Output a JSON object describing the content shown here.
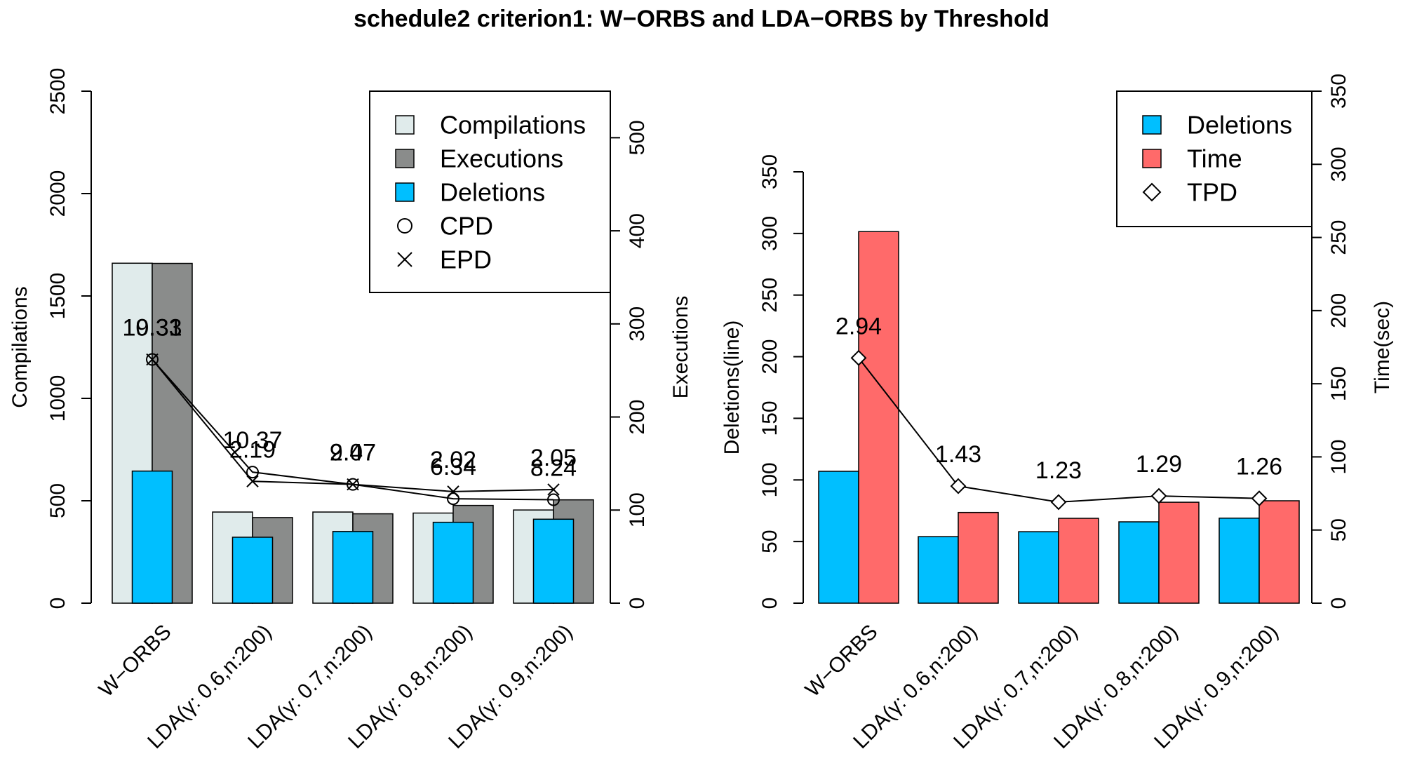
{
  "title": "schedule2 criterion1: W−ORBS and LDA−ORBS by Threshold",
  "chart_data": [
    {
      "type": "bar",
      "panel": "left",
      "categories": [
        "W−ORBS",
        "LDA(γ: 0.6,n:200)",
        "LDA(γ: 0.7,n:200)",
        "LDA(γ: 0.8,n:200)",
        "LDA(γ: 0.9,n:200)"
      ],
      "ylabel": "Compilations",
      "ylabel_right": "Executions",
      "ylim": [
        0,
        2500
      ],
      "ylim_right": [
        0,
        550
      ],
      "yticks": [
        "0",
        "500",
        "1000",
        "1500",
        "2000",
        "2500"
      ],
      "yticks_right": [
        "0",
        "100",
        "200",
        "300",
        "400",
        "500"
      ],
      "series": [
        {
          "name": "Compilations",
          "axis": "left",
          "color": "#e0ebeb",
          "values": [
            1660,
            445,
            445,
            440,
            455
          ]
        },
        {
          "name": "Executions",
          "axis": "right",
          "color": "#8a8c8b",
          "values": [
            365,
            92,
            96,
            105,
            111
          ]
        },
        {
          "name": "Deletions",
          "axis": "left",
          "color": "#00bfff",
          "values": [
            645,
            322,
            350,
            395,
            410
          ]
        }
      ],
      "lines": [
        {
          "name": "CPD",
          "marker": "circle",
          "values": [
            1190,
            640,
            580,
            510,
            505
          ],
          "labels": [
            "10.31",
            "10.37",
            "9.47",
            "6.34",
            "8.24"
          ]
        },
        {
          "name": "EPD",
          "marker": "x",
          "values": [
            1190,
            595,
            580,
            545,
            555
          ],
          "labels": [
            "19.33",
            "2.19",
            "2.07",
            "2.02",
            "2.05"
          ]
        }
      ],
      "legend": {
        "position": "top-right",
        "items": [
          "Compilations",
          "Executions",
          "Deletions",
          "CPD",
          "EPD"
        ]
      }
    },
    {
      "type": "bar",
      "panel": "right",
      "categories": [
        "W−ORBS",
        "LDA(γ: 0.6,n:200)",
        "LDA(γ: 0.7,n:200)",
        "LDA(γ: 0.8,n:200)",
        "LDA(γ: 0.9,n:200)"
      ],
      "ylabel": "Deletions(line)",
      "ylabel_right": "Time(sec)",
      "ylim": [
        0,
        350
      ],
      "ylim_right": [
        0,
        350
      ],
      "yticks": [
        "0",
        "50",
        "100",
        "150",
        "200",
        "250",
        "300",
        "350"
      ],
      "yticks_right": [
        "0",
        "50",
        "100",
        "150",
        "200",
        "250",
        "300",
        "350"
      ],
      "series": [
        {
          "name": "Deletions",
          "axis": "left",
          "color": "#00bfff",
          "values": [
            107,
            54,
            58,
            66,
            69
          ]
        },
        {
          "name": "Time",
          "axis": "right",
          "color": "#ff6a6a",
          "values": [
            254,
            62,
            58,
            69,
            70
          ]
        }
      ],
      "lines": [
        {
          "name": "TPD",
          "marker": "diamond",
          "values": [
            199,
            95,
            82,
            87,
            85
          ],
          "labels": [
            "2.94",
            "1.43",
            "1.23",
            "1.29",
            "1.26"
          ]
        }
      ],
      "legend": {
        "position": "top-right",
        "items": [
          "Deletions",
          "Time",
          "TPD"
        ]
      }
    }
  ]
}
